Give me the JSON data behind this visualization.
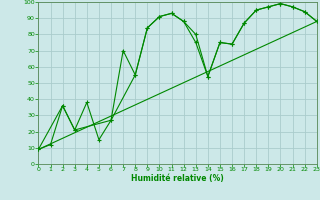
{
  "xlabel": "Humidité relative (%)",
  "bg_color": "#cce8e8",
  "grid_color": "#aacccc",
  "line_color": "#008800",
  "xlim": [
    0,
    23
  ],
  "ylim": [
    0,
    100
  ],
  "xticks": [
    0,
    1,
    2,
    3,
    4,
    5,
    6,
    7,
    8,
    9,
    10,
    11,
    12,
    13,
    14,
    15,
    16,
    17,
    18,
    19,
    20,
    21,
    22,
    23
  ],
  "yticks": [
    0,
    10,
    20,
    30,
    40,
    50,
    60,
    70,
    80,
    90,
    100
  ],
  "line1_x": [
    0,
    1,
    2,
    3,
    4,
    5,
    6,
    7,
    8,
    9,
    10,
    11,
    12,
    13,
    14,
    15,
    16,
    17,
    18,
    19,
    20,
    21,
    22,
    23
  ],
  "line1_y": [
    9,
    12,
    36,
    21,
    38,
    15,
    27,
    70,
    55,
    84,
    91,
    93,
    88,
    80,
    54,
    75,
    74,
    87,
    95,
    97,
    99,
    97,
    94,
    88
  ],
  "line2_x": [
    0,
    23
  ],
  "line2_y": [
    9,
    88
  ],
  "line3_x": [
    0,
    2,
    3,
    6,
    8,
    9,
    10,
    11,
    12,
    13,
    14,
    15,
    16,
    17,
    18,
    19,
    20,
    21,
    22,
    23
  ],
  "line3_y": [
    9,
    36,
    21,
    27,
    55,
    84,
    91,
    93,
    88,
    75,
    54,
    75,
    74,
    87,
    95,
    97,
    99,
    97,
    94,
    88
  ]
}
